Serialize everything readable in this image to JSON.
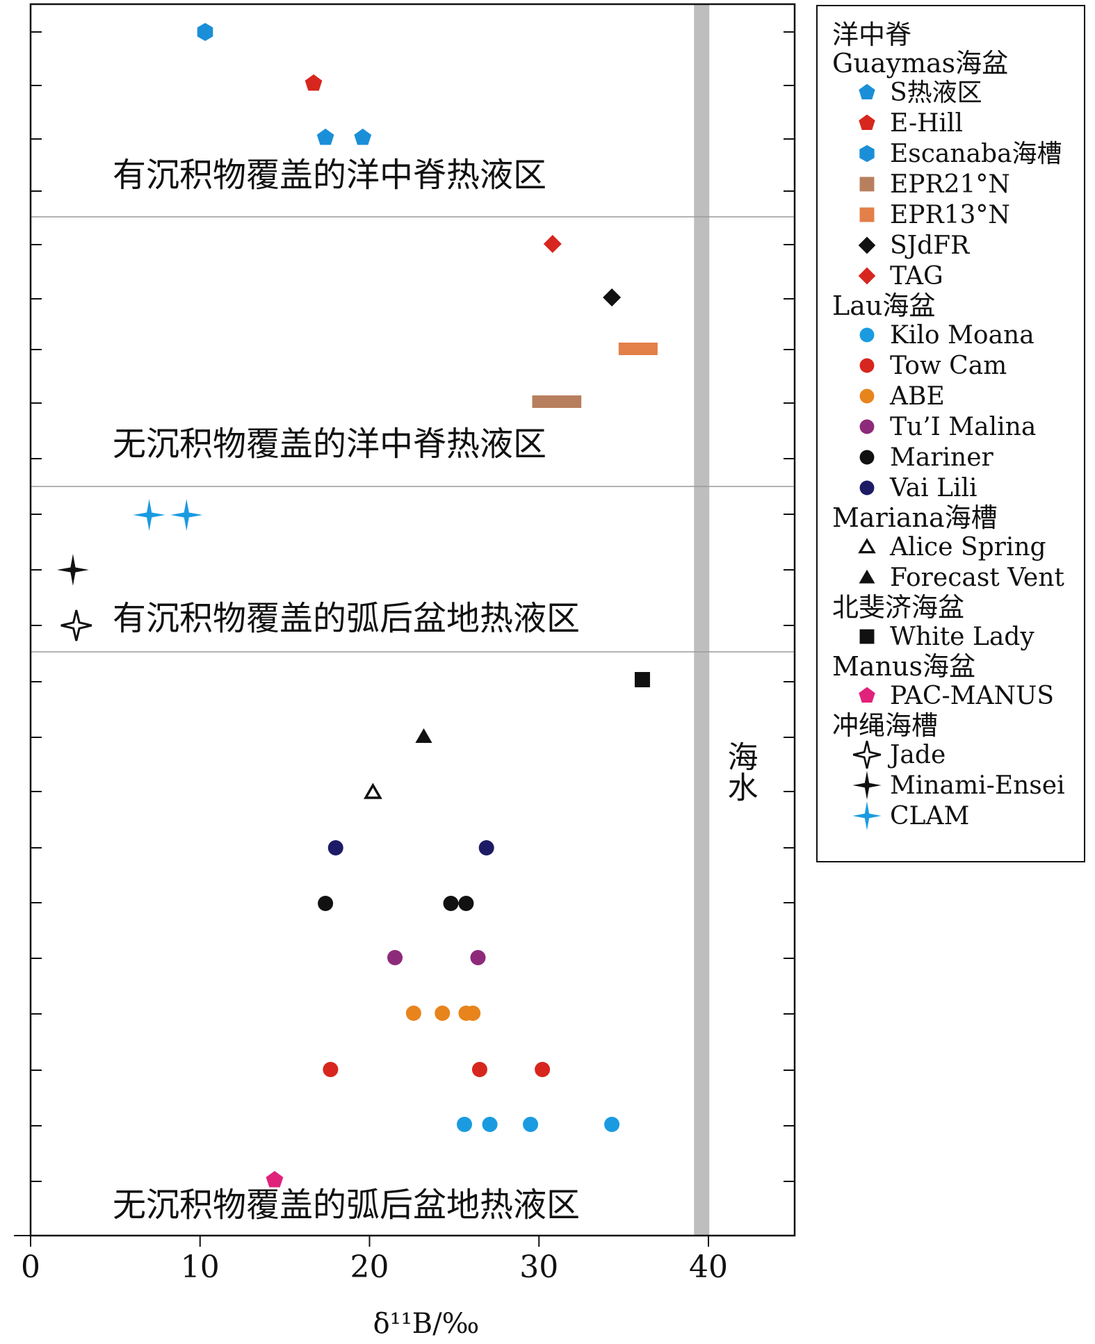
{
  "chart_data": {
    "type": "scatter",
    "title": "",
    "xlabel": "δ¹¹B/‰",
    "xlim": [
      0,
      45
    ],
    "x_ticks": [
      "0",
      "10",
      "20",
      "30",
      "40"
    ],
    "grid": false,
    "legend_placement": "right",
    "reference_band": {
      "x": 39.6,
      "label": "海水",
      "color": "#BEBEBE"
    },
    "zones": [
      {
        "label": "有沉积物覆盖的洋中脊热液区"
      },
      {
        "label": "无沉积物覆盖的洋中脊热液区"
      },
      {
        "label": "有沉积物覆盖的弧后盆地热液区"
      },
      {
        "label": "无沉积物覆盖的弧后盆地热液区"
      }
    ],
    "legend_groups": [
      {
        "title": [
          "洋中脊",
          "Guaymas海盆"
        ],
        "items": [
          {
            "label": "S热液区",
            "marker": "pentagon",
            "color": "#1A8FD8"
          },
          {
            "label": "E-Hill",
            "marker": "pentagon",
            "color": "#D7261E"
          }
        ]
      },
      {
        "title": [],
        "items": [
          {
            "label": "Escanaba海槽",
            "marker": "hexagon",
            "color": "#1A8FD8"
          },
          {
            "label": "EPR21°N",
            "marker": "square",
            "color": "#B87F5E"
          },
          {
            "label": "EPR13°N",
            "marker": "square",
            "color": "#E37F48"
          },
          {
            "label": "SJdFR",
            "marker": "diamond",
            "color": "#111111"
          },
          {
            "label": "TAG",
            "marker": "diamond",
            "color": "#D7261E"
          }
        ]
      },
      {
        "title": [
          "Lau海盆"
        ],
        "items": [
          {
            "label": "Kilo Moana",
            "marker": "circle",
            "color": "#1A9BE0"
          },
          {
            "label": "Tow Cam",
            "marker": "circle",
            "color": "#D7261E"
          },
          {
            "label": "ABE",
            "marker": "circle",
            "color": "#E8841C"
          },
          {
            "label": "Tu’I Malina",
            "marker": "circle",
            "color": "#8E2A7A"
          },
          {
            "label": "Mariner",
            "marker": "circle",
            "color": "#111111"
          },
          {
            "label": "Vai Lili",
            "marker": "circle",
            "color": "#1E1B66"
          }
        ]
      },
      {
        "title": [
          "Mariana海槽"
        ],
        "items": [
          {
            "label": "Alice Spring",
            "marker": "triangle-open",
            "color": "#111111"
          },
          {
            "label": "Forecast Vent",
            "marker": "triangle",
            "color": "#111111"
          }
        ]
      },
      {
        "title": [
          "北斐济海盆"
        ],
        "items": [
          {
            "label": "White Lady",
            "marker": "square",
            "color": "#111111"
          }
        ]
      },
      {
        "title": [
          "Manus海盆"
        ],
        "items": [
          {
            "label": "PAC-MANUS",
            "marker": "pentagon",
            "color": "#E0227A"
          }
        ]
      },
      {
        "title": [
          "冲绳海槽"
        ],
        "items": [
          {
            "label": "Jade",
            "marker": "star-open",
            "color": "#111111"
          },
          {
            "label": "Minami-Ensei",
            "marker": "star",
            "color": "#111111"
          },
          {
            "label": "CLAM",
            "marker": "star",
            "color": "#1A9BE0"
          }
        ]
      }
    ],
    "series": [
      {
        "name": "Escanaba海槽",
        "marker": "hexagon",
        "color": "#1A8FD8",
        "zone": 0,
        "row": 0,
        "x": [
          10.3
        ]
      },
      {
        "name": "E-Hill",
        "marker": "pentagon",
        "color": "#D7261E",
        "zone": 0,
        "row": 1,
        "x": [
          16.7
        ]
      },
      {
        "name": "S热液区",
        "marker": "pentagon",
        "color": "#1A8FD8",
        "zone": 0,
        "row": 2,
        "x": [
          17.4,
          19.6
        ]
      },
      {
        "name": "TAG",
        "marker": "diamond",
        "color": "#D7261E",
        "zone": 1,
        "row": 0,
        "x": [
          30.8
        ]
      },
      {
        "name": "SJdFR",
        "marker": "diamond",
        "color": "#111111",
        "zone": 1,
        "row": 1,
        "x": [
          34.3
        ]
      },
      {
        "name": "EPR13°N",
        "marker": "range",
        "color": "#E37F48",
        "zone": 1,
        "row": 2,
        "x": [
          34.7,
          37.0
        ]
      },
      {
        "name": "EPR21°N",
        "marker": "range",
        "color": "#B87F5E",
        "zone": 1,
        "row": 3,
        "x": [
          29.6,
          32.5
        ]
      },
      {
        "name": "CLAM",
        "marker": "star",
        "color": "#1A9BE0",
        "zone": 2,
        "row": 0,
        "x": [
          7.0,
          9.2
        ]
      },
      {
        "name": "Minami-Ensei",
        "marker": "star",
        "color": "#111111",
        "zone": 2,
        "row": 1,
        "x": [
          2.5
        ]
      },
      {
        "name": "Jade",
        "marker": "star-open",
        "color": "#111111",
        "zone": 2,
        "row": 2,
        "x": [
          2.7
        ]
      },
      {
        "name": "White Lady",
        "marker": "square",
        "color": "#111111",
        "zone": 3,
        "row": 0,
        "x": [
          36.1
        ]
      },
      {
        "name": "Forecast Vent",
        "marker": "triangle",
        "color": "#111111",
        "zone": 3,
        "row": 1,
        "x": [
          23.2
        ]
      },
      {
        "name": "Alice Spring",
        "marker": "triangle-open",
        "color": "#111111",
        "zone": 3,
        "row": 2,
        "x": [
          20.2
        ]
      },
      {
        "name": "Vai Lili",
        "marker": "circle",
        "color": "#1E1B66",
        "zone": 3,
        "row": 3,
        "x": [
          18.0,
          26.9
        ]
      },
      {
        "name": "Mariner",
        "marker": "circle",
        "color": "#111111",
        "zone": 3,
        "row": 4,
        "x": [
          17.4,
          24.8,
          25.7
        ]
      },
      {
        "name": "Tu’I Malina",
        "marker": "circle",
        "color": "#8E2A7A",
        "zone": 3,
        "row": 5,
        "x": [
          21.5,
          26.4
        ]
      },
      {
        "name": "ABE",
        "marker": "circle",
        "color": "#E8841C",
        "zone": 3,
        "row": 6,
        "x": [
          22.6,
          24.3,
          25.7,
          26.1
        ]
      },
      {
        "name": "Tow Cam",
        "marker": "circle",
        "color": "#D7261E",
        "zone": 3,
        "row": 7,
        "x": [
          17.7,
          26.5,
          30.2
        ]
      },
      {
        "name": "Kilo Moana",
        "marker": "circle",
        "color": "#1A9BE0",
        "zone": 3,
        "row": 8,
        "x": [
          25.6,
          27.1,
          29.5,
          34.3
        ]
      },
      {
        "name": "PAC-MANUS",
        "marker": "pentagon",
        "color": "#E0227A",
        "zone": 3,
        "row": 9,
        "x": [
          14.4
        ]
      }
    ]
  }
}
